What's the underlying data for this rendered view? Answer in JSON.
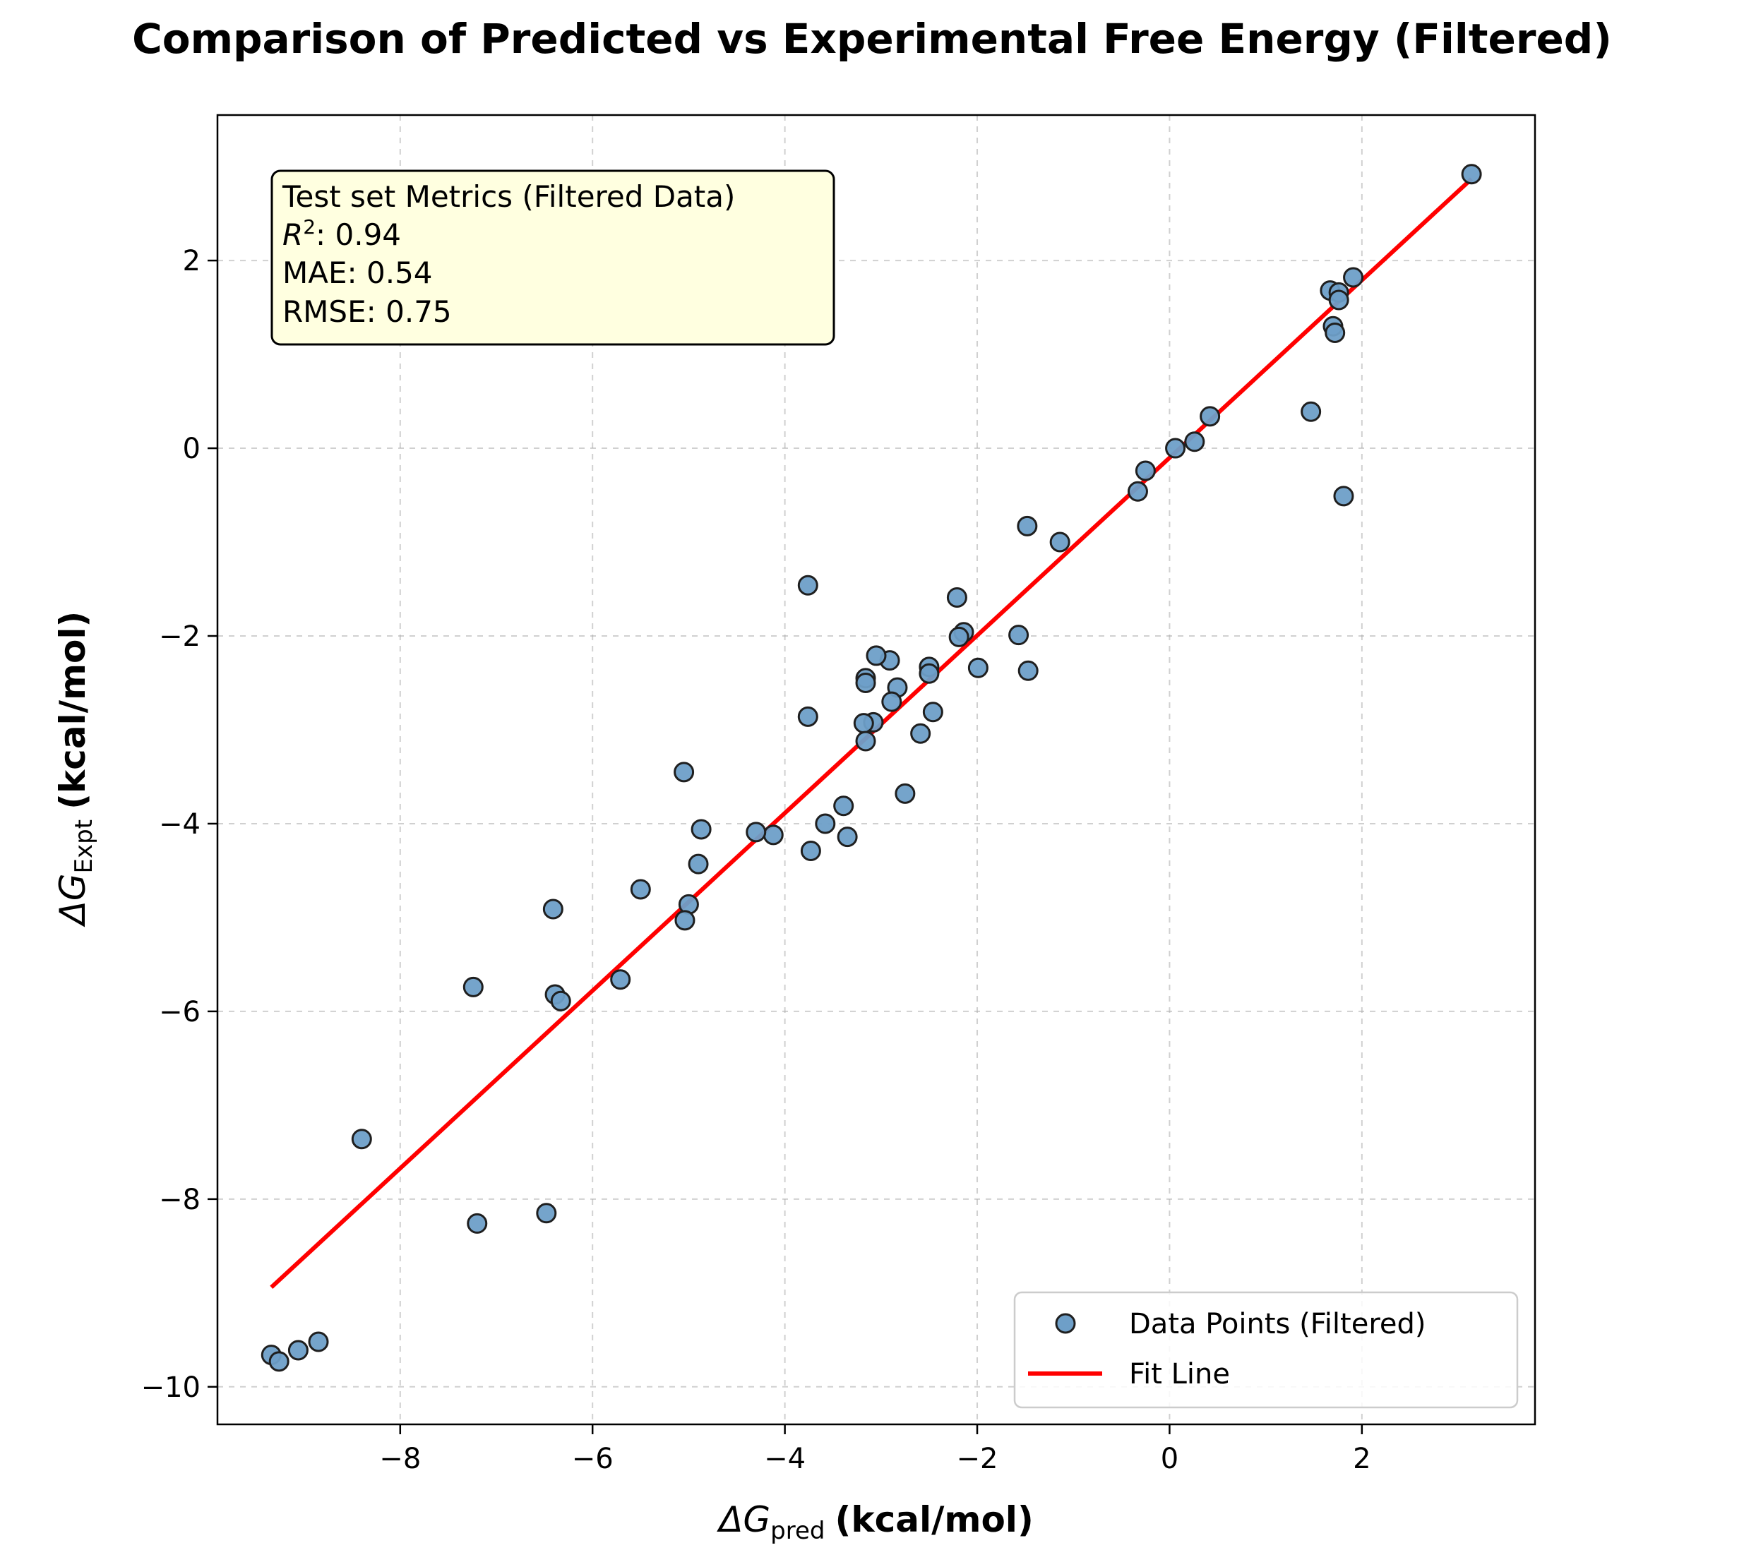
{
  "chart_data": {
    "type": "scatter",
    "title": "Comparison of Predicted vs Experimental Free Energy (Filtered)",
    "xlabel": {
      "symbol": "ΔG",
      "subscript": "pred",
      "unit": "(kcal/mol)"
    },
    "ylabel": {
      "symbol": "ΔG",
      "subscript": "Expt",
      "unit": "(kcal/mol)"
    },
    "xlim": [
      -9.9,
      3.8
    ],
    "ylim": [
      -10.4,
      3.55
    ],
    "xticks": [
      -8,
      -6,
      -4,
      -2,
      0,
      2
    ],
    "xtick_labels": [
      "−8",
      "−6",
      "−4",
      "−2",
      "0",
      "2"
    ],
    "yticks": [
      -10,
      -8,
      -6,
      -4,
      -2,
      0,
      2
    ],
    "ytick_labels": [
      "−10",
      "−8",
      "−6",
      "−4",
      "−2",
      "0",
      "2"
    ],
    "grid": true,
    "metrics_box": {
      "heading": "Test set Metrics (Filtered Data)",
      "r2_label": "R",
      "r2_value": ": 0.94",
      "mae": "MAE: 0.54",
      "rmse": "RMSE: 0.75"
    },
    "legend": {
      "placement": "bottom-right",
      "scatter_label": "Data Points (Filtered)",
      "line_label": "Fit Line"
    },
    "colors": {
      "points": "#6e9fc8",
      "point_edge": "#1f1f1f",
      "fit_line": "#ff0000",
      "metrics_box_fill": "#ffffe0",
      "grid": "#b0b0b0"
    },
    "series": [
      {
        "name": "Data Points (Filtered)",
        "points": [
          {
            "x": 3.14,
            "y": 2.92
          },
          {
            "x": 1.91,
            "y": 1.82
          },
          {
            "x": 1.67,
            "y": 1.68
          },
          {
            "x": 1.76,
            "y": 1.66
          },
          {
            "x": 1.76,
            "y": 1.58
          },
          {
            "x": 1.7,
            "y": 1.3
          },
          {
            "x": 1.72,
            "y": 1.23
          },
          {
            "x": 1.47,
            "y": 0.39
          },
          {
            "x": 1.81,
            "y": -0.51
          },
          {
            "x": 0.42,
            "y": 0.34
          },
          {
            "x": 0.26,
            "y": 0.07
          },
          {
            "x": 0.06,
            "y": 0.0
          },
          {
            "x": -0.25,
            "y": -0.24
          },
          {
            "x": -0.33,
            "y": -0.46
          },
          {
            "x": -1.48,
            "y": -0.83
          },
          {
            "x": -1.14,
            "y": -1.0
          },
          {
            "x": -1.57,
            "y": -1.99
          },
          {
            "x": -1.47,
            "y": -2.37
          },
          {
            "x": -1.99,
            "y": -2.34
          },
          {
            "x": -2.21,
            "y": -1.59
          },
          {
            "x": -2.14,
            "y": -1.96
          },
          {
            "x": -2.19,
            "y": -2.01
          },
          {
            "x": -2.5,
            "y": -2.33
          },
          {
            "x": -2.5,
            "y": -2.4
          },
          {
            "x": -2.46,
            "y": -2.81
          },
          {
            "x": -2.59,
            "y": -3.04
          },
          {
            "x": -2.75,
            "y": -3.68
          },
          {
            "x": -2.83,
            "y": -2.55
          },
          {
            "x": -2.89,
            "y": -2.7
          },
          {
            "x": -2.91,
            "y": -2.26
          },
          {
            "x": -3.05,
            "y": -2.21
          },
          {
            "x": -3.16,
            "y": -2.45
          },
          {
            "x": -3.16,
            "y": -2.5
          },
          {
            "x": -3.08,
            "y": -2.92
          },
          {
            "x": -3.18,
            "y": -2.93
          },
          {
            "x": -3.16,
            "y": -3.12
          },
          {
            "x": -3.76,
            "y": -1.46
          },
          {
            "x": -3.76,
            "y": -2.86
          },
          {
            "x": -3.39,
            "y": -3.81
          },
          {
            "x": -3.35,
            "y": -4.14
          },
          {
            "x": -3.58,
            "y": -4.0
          },
          {
            "x": -3.73,
            "y": -4.29
          },
          {
            "x": -4.12,
            "y": -4.12
          },
          {
            "x": -4.3,
            "y": -4.09
          },
          {
            "x": -4.87,
            "y": -4.06
          },
          {
            "x": -4.9,
            "y": -4.43
          },
          {
            "x": -5.05,
            "y": -3.45
          },
          {
            "x": -5.0,
            "y": -4.86
          },
          {
            "x": -5.04,
            "y": -5.03
          },
          {
            "x": -5.5,
            "y": -4.7
          },
          {
            "x": -5.71,
            "y": -5.66
          },
          {
            "x": -6.41,
            "y": -4.91
          },
          {
            "x": -6.39,
            "y": -5.82
          },
          {
            "x": -6.33,
            "y": -5.89
          },
          {
            "x": -7.24,
            "y": -5.74
          },
          {
            "x": -7.2,
            "y": -8.26
          },
          {
            "x": -6.48,
            "y": -8.15
          },
          {
            "x": -8.4,
            "y": -7.36
          },
          {
            "x": -8.85,
            "y": -9.52
          },
          {
            "x": -9.06,
            "y": -9.61
          },
          {
            "x": -9.34,
            "y": -9.66
          },
          {
            "x": -9.26,
            "y": -9.73
          }
        ]
      },
      {
        "name": "Fit Line",
        "x": [
          -9.34,
          3.14
        ],
        "y": [
          -8.94,
          2.87
        ]
      }
    ]
  }
}
